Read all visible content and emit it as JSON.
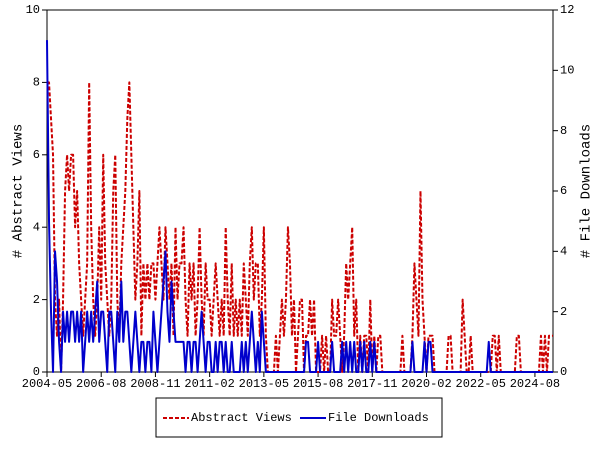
{
  "chart_data": {
    "type": "line",
    "ylabel": "# Abstract Views",
    "y2label": "# File Downloads",
    "x": [
      "2004-05",
      "2004-06",
      "2004-07",
      "2004-08",
      "2004-09",
      "2004-10",
      "2004-11",
      "2004-12",
      "2005-01",
      "2005-02",
      "2005-03",
      "2005-04",
      "2005-05",
      "2005-06",
      "2005-07",
      "2005-08",
      "2005-09",
      "2005-10",
      "2005-11",
      "2005-12",
      "2006-01",
      "2006-02",
      "2006-03",
      "2006-04",
      "2006-05",
      "2006-06",
      "2006-07",
      "2006-08",
      "2006-09",
      "2006-10",
      "2006-11",
      "2006-12",
      "2007-01",
      "2007-02",
      "2007-03",
      "2007-04",
      "2007-05",
      "2007-06",
      "2007-07",
      "2007-08",
      "2007-09",
      "2007-10",
      "2007-11",
      "2007-12",
      "2008-01",
      "2008-02",
      "2008-03",
      "2008-04",
      "2008-05",
      "2008-06",
      "2008-07",
      "2008-08",
      "2008-09",
      "2008-10",
      "2008-11",
      "2008-12",
      "2009-01",
      "2009-02",
      "2009-03",
      "2009-04",
      "2009-05",
      "2009-06",
      "2009-07",
      "2009-08",
      "2009-09",
      "2009-10",
      "2009-11",
      "2009-12",
      "2010-01",
      "2010-02",
      "2010-03",
      "2010-04",
      "2010-05",
      "2010-06",
      "2010-07",
      "2010-08",
      "2010-09",
      "2010-10",
      "2010-11",
      "2010-12",
      "2011-01",
      "2011-02",
      "2011-03",
      "2011-04",
      "2011-05",
      "2011-06",
      "2011-07",
      "2011-08",
      "2011-09",
      "2011-10",
      "2011-11",
      "2011-12",
      "2012-01",
      "2012-02",
      "2012-03",
      "2012-04",
      "2012-05",
      "2012-06",
      "2012-07",
      "2012-08",
      "2012-09",
      "2012-10",
      "2012-11",
      "2012-12",
      "2013-01",
      "2013-02",
      "2013-03",
      "2013-04",
      "2013-05",
      "2013-06",
      "2013-07",
      "2013-08",
      "2013-09",
      "2013-10",
      "2013-11",
      "2013-12",
      "2014-01",
      "2014-02",
      "2014-03",
      "2014-04",
      "2014-05",
      "2014-06",
      "2014-07",
      "2014-08",
      "2014-09",
      "2014-10",
      "2014-11",
      "2014-12",
      "2015-01",
      "2015-02",
      "2015-03",
      "2015-04",
      "2015-05",
      "2015-06",
      "2015-07",
      "2015-08",
      "2015-09",
      "2015-10",
      "2015-11",
      "2015-12",
      "2016-01",
      "2016-02",
      "2016-03",
      "2016-04",
      "2016-05",
      "2016-06",
      "2016-07",
      "2016-08",
      "2016-09",
      "2016-10",
      "2016-11",
      "2016-12",
      "2017-01",
      "2017-02",
      "2017-03",
      "2017-04",
      "2017-05",
      "2017-06",
      "2017-07",
      "2017-08",
      "2017-09",
      "2017-10",
      "2017-11",
      "2017-12",
      "2018-01",
      "2018-02",
      "2018-03",
      "2018-04",
      "2018-05",
      "2018-06",
      "2018-07",
      "2018-08",
      "2018-09",
      "2018-10",
      "2018-11",
      "2018-12",
      "2019-01",
      "2019-02",
      "2019-03",
      "2019-04",
      "2019-05",
      "2019-06",
      "2019-07",
      "2019-08",
      "2019-09",
      "2019-10",
      "2019-11",
      "2019-12",
      "2020-01",
      "2020-02",
      "2020-03",
      "2020-04",
      "2020-05",
      "2020-06",
      "2020-07",
      "2020-08",
      "2020-09",
      "2020-10",
      "2020-11",
      "2020-12",
      "2021-01",
      "2021-02",
      "2021-03",
      "2021-04",
      "2021-05",
      "2021-06",
      "2021-07",
      "2021-08",
      "2021-09",
      "2021-10",
      "2021-11",
      "2021-12",
      "2022-01",
      "2022-02",
      "2022-03",
      "2022-04",
      "2022-05",
      "2022-06",
      "2022-07",
      "2022-08",
      "2022-09",
      "2022-10",
      "2022-11",
      "2022-12",
      "2023-01",
      "2023-02",
      "2023-03",
      "2023-04",
      "2023-05",
      "2023-06",
      "2023-07",
      "2023-08",
      "2023-09",
      "2023-10",
      "2023-11",
      "2023-12",
      "2024-01",
      "2024-02",
      "2024-03",
      "2024-04",
      "2024-05",
      "2024-06",
      "2024-07",
      "2024-08",
      "2024-09",
      "2024-10",
      "2024-11",
      "2024-12",
      "2025-01",
      "2025-02",
      "2025-03",
      "2025-04",
      "2025-05"
    ],
    "xticks": [
      "2004-05",
      "2006-08",
      "2008-11",
      "2011-02",
      "2013-05",
      "2015-08",
      "2017-11",
      "2020-02",
      "2022-05",
      "2024-08"
    ],
    "series": [
      {
        "name": "Abstract Views",
        "color": "#cc0000",
        "style": "dashed",
        "values": [
          8,
          8,
          7,
          6,
          2,
          1,
          2,
          0,
          2,
          5,
          6,
          5,
          6,
          6,
          4,
          5,
          3,
          2,
          1,
          2,
          3,
          8,
          4,
          2,
          1,
          2,
          4,
          2,
          6,
          3,
          2,
          1,
          2,
          5,
          6,
          2,
          1,
          3,
          4,
          5,
          7,
          8,
          6,
          4,
          2,
          3,
          5,
          1,
          3,
          2,
          3,
          2,
          3,
          3,
          2,
          3,
          4,
          3,
          2,
          4,
          3,
          2,
          3,
          1,
          4,
          2,
          3,
          3,
          4,
          2,
          1,
          3,
          2,
          3,
          1,
          2,
          4,
          2,
          1,
          3,
          2,
          2,
          1,
          2,
          3,
          2,
          1,
          2,
          1,
          4,
          2,
          1,
          3,
          1,
          2,
          1,
          2,
          1,
          3,
          2,
          1,
          3,
          4,
          2,
          3,
          3,
          1,
          2,
          4,
          1,
          0,
          0,
          0,
          0,
          1,
          0,
          1,
          2,
          1,
          2,
          4,
          3,
          1,
          2,
          0,
          1,
          2,
          2,
          0,
          1,
          1,
          2,
          1,
          2,
          0,
          0,
          0,
          1,
          0,
          1,
          0,
          0,
          2,
          1,
          1,
          2,
          1,
          0,
          1,
          3,
          2,
          3,
          4,
          1,
          2,
          0,
          1,
          0,
          1,
          1,
          0,
          2,
          0,
          1,
          0,
          1,
          1,
          0,
          0,
          0,
          0,
          0,
          0,
          0,
          0,
          0,
          0,
          1,
          0,
          0,
          0,
          0,
          1,
          3,
          2,
          1,
          5,
          2,
          1,
          0,
          1,
          1,
          1,
          0,
          0,
          0,
          0,
          0,
          0,
          0,
          1,
          1,
          0,
          0,
          0,
          0,
          0,
          2,
          1,
          0,
          0,
          1,
          0,
          0,
          0,
          0,
          0,
          0,
          0,
          0,
          0,
          0,
          1,
          1,
          0,
          1,
          0,
          0,
          0,
          0,
          0,
          0,
          0,
          0,
          1,
          1,
          0,
          0,
          0,
          0,
          0,
          0,
          0,
          0,
          0,
          0,
          1,
          0,
          1,
          0,
          1,
          1,
          1
        ]
      },
      {
        "name": "File Downloads",
        "color": "#0000cc",
        "style": "solid",
        "axis": "y2",
        "values": [
          11,
          5,
          2,
          0,
          4,
          3,
          1,
          0,
          2,
          1,
          2,
          1,
          2,
          2,
          1,
          2,
          1,
          2,
          0,
          1,
          2,
          1,
          2,
          1,
          2,
          3,
          1,
          2,
          2,
          1,
          0,
          2,
          2,
          1,
          0,
          2,
          1,
          3,
          1,
          2,
          2,
          1,
          0,
          1,
          2,
          1,
          0,
          1,
          1,
          0,
          1,
          1,
          0,
          2,
          1,
          0,
          1,
          2,
          3,
          4,
          2,
          1,
          3,
          2,
          1,
          1,
          1,
          1,
          1,
          0,
          1,
          1,
          0,
          1,
          1,
          0,
          1,
          2,
          1,
          0,
          1,
          1,
          0,
          0,
          1,
          0,
          1,
          1,
          0,
          1,
          0,
          0,
          1,
          0,
          0,
          0,
          0,
          1,
          0,
          1,
          0,
          1,
          2,
          1,
          0,
          1,
          0,
          2,
          1,
          0,
          0,
          0,
          0,
          0,
          0,
          0,
          0,
          0,
          0,
          0,
          0,
          0,
          0,
          0,
          0,
          0,
          0,
          0,
          0,
          1,
          1,
          0,
          0,
          0,
          0,
          1,
          0,
          0,
          0,
          0,
          0,
          0,
          1,
          0,
          0,
          0,
          0,
          1,
          0,
          1,
          0,
          1,
          0,
          1,
          0,
          0,
          1,
          0,
          1,
          0,
          0,
          1,
          0,
          1,
          0,
          0,
          0,
          0,
          0,
          0,
          0,
          0,
          0,
          0,
          0,
          0,
          0,
          0,
          0,
          0,
          0,
          0,
          1,
          0,
          0,
          0,
          0,
          0,
          1,
          0,
          1,
          1,
          0,
          0,
          0,
          0,
          0,
          0,
          0,
          0,
          0,
          0,
          0,
          0,
          0,
          0,
          0,
          0,
          0,
          0,
          0,
          0,
          0,
          0,
          0,
          0,
          0,
          0,
          0,
          0,
          1,
          0,
          0,
          0,
          0,
          0,
          0,
          0,
          0,
          0,
          0,
          0,
          0,
          0,
          0,
          0,
          0,
          0,
          0,
          0,
          0,
          0,
          0,
          0,
          0,
          0,
          0,
          0,
          0,
          0,
          0,
          0,
          0
        ]
      }
    ],
    "ylim": [
      0,
      10
    ],
    "yticks": [
      0,
      2,
      4,
      6,
      8,
      10
    ],
    "y2lim": [
      0,
      12
    ],
    "y2ticks": [
      0,
      2,
      4,
      6,
      8,
      10,
      12
    ],
    "legend": "bottom"
  }
}
